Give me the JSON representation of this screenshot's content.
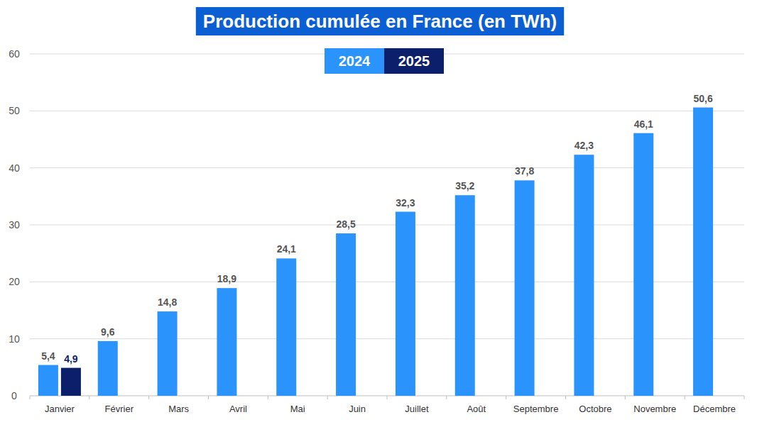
{
  "chart_data": {
    "type": "bar",
    "title": "Production cumulée en France (en TWh)",
    "categories": [
      "Janvier",
      "Février",
      "Mars",
      "Avril",
      "Mai",
      "Juin",
      "Juillet",
      "Août",
      "Septembre",
      "Octobre",
      "Novembre",
      "Décembre"
    ],
    "series": [
      {
        "name": "2024",
        "color": "#2b93fc",
        "values": [
          5.4,
          9.6,
          14.8,
          18.9,
          24.1,
          28.5,
          32.3,
          35.2,
          37.8,
          42.3,
          46.1,
          50.6
        ],
        "value_labels": [
          "5,4",
          "9,6",
          "14,8",
          "18,9",
          "24,1",
          "28,5",
          "32,3",
          "35,2",
          "37,8",
          "42,3",
          "46,1",
          "50,6"
        ]
      },
      {
        "name": "2025",
        "color": "#0b1f6b",
        "values": [
          4.9,
          null,
          null,
          null,
          null,
          null,
          null,
          null,
          null,
          null,
          null,
          null
        ],
        "value_labels": [
          "4,9",
          null,
          null,
          null,
          null,
          null,
          null,
          null,
          null,
          null,
          null,
          null
        ]
      }
    ],
    "ylim": [
      0,
      60
    ],
    "yticks": [
      0,
      10,
      20,
      30,
      40,
      50,
      60
    ],
    "grid": true,
    "legend": "top",
    "data_labels": true
  }
}
